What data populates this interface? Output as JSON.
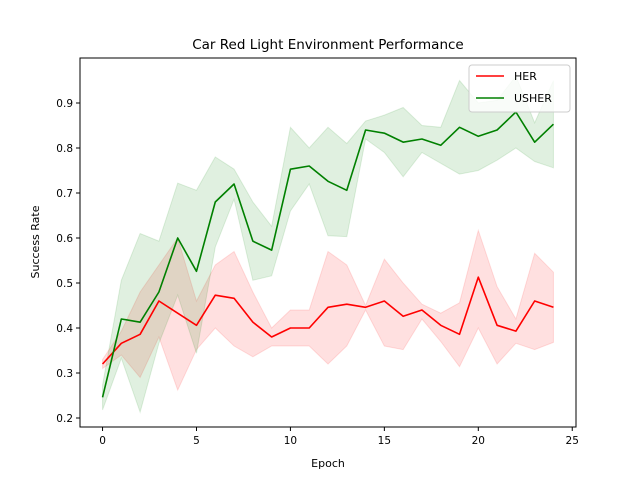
{
  "chart_data": {
    "type": "line",
    "title": "Car Red Light Environment Performance",
    "xlabel": "Epoch",
    "ylabel": "Success Rate",
    "xlim": [
      -1.2,
      25.2
    ],
    "ylim": [
      0.18,
      1.0
    ],
    "xticks": [
      0,
      5,
      10,
      15,
      20,
      25
    ],
    "yticks": [
      0.2,
      0.3,
      0.4,
      0.5,
      0.6,
      0.7,
      0.8,
      0.9
    ],
    "grid": false,
    "legend": "top-right",
    "x": [
      0,
      1,
      2,
      3,
      4,
      5,
      6,
      7,
      8,
      9,
      10,
      11,
      12,
      13,
      14,
      15,
      16,
      17,
      18,
      19,
      20,
      21,
      22,
      23,
      24
    ],
    "series": [
      {
        "name": "HER",
        "color": "#ff0000",
        "band_color": "#ff0000",
        "values": [
          0.32,
          0.366,
          0.386,
          0.46,
          0.433,
          0.406,
          0.473,
          0.466,
          0.413,
          0.38,
          0.4,
          0.4,
          0.446,
          0.453,
          0.446,
          0.46,
          0.426,
          0.44,
          0.406,
          0.386,
          0.513,
          0.406,
          0.393,
          0.46,
          0.446
        ],
        "lower": [
          0.31,
          0.34,
          0.29,
          0.38,
          0.262,
          0.352,
          0.4,
          0.36,
          0.336,
          0.36,
          0.36,
          0.36,
          0.32,
          0.36,
          0.44,
          0.36,
          0.352,
          0.42,
          0.37,
          0.314,
          0.4,
          0.32,
          0.366,
          0.352,
          0.368
        ],
        "upper": [
          0.33,
          0.393,
          0.48,
          0.54,
          0.6,
          0.46,
          0.54,
          0.57,
          0.48,
          0.4,
          0.44,
          0.44,
          0.57,
          0.54,
          0.45,
          0.553,
          0.5,
          0.453,
          0.433,
          0.456,
          0.617,
          0.492,
          0.42,
          0.566,
          0.524
        ]
      },
      {
        "name": "USHER",
        "color": "#008000",
        "band_color": "#008000",
        "values": [
          0.246,
          0.42,
          0.413,
          0.48,
          0.6,
          0.526,
          0.68,
          0.72,
          0.593,
          0.573,
          0.753,
          0.76,
          0.726,
          0.706,
          0.84,
          0.833,
          0.813,
          0.82,
          0.806,
          0.846,
          0.826,
          0.84,
          0.88,
          0.813,
          0.853
        ],
        "lower": [
          0.218,
          0.333,
          0.213,
          0.366,
          0.473,
          0.344,
          0.58,
          0.686,
          0.506,
          0.516,
          0.66,
          0.72,
          0.605,
          0.603,
          0.82,
          0.79,
          0.736,
          0.79,
          0.766,
          0.742,
          0.75,
          0.773,
          0.8,
          0.77,
          0.756
        ],
        "upper": [
          0.273,
          0.506,
          0.61,
          0.593,
          0.722,
          0.706,
          0.78,
          0.753,
          0.68,
          0.626,
          0.846,
          0.8,
          0.846,
          0.81,
          0.86,
          0.873,
          0.89,
          0.85,
          0.846,
          0.95,
          0.9,
          0.906,
          0.96,
          0.856,
          0.95
        ]
      }
    ]
  }
}
